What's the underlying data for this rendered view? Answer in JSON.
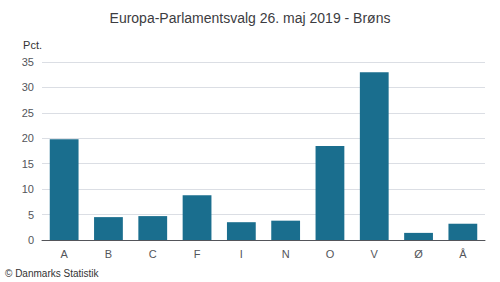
{
  "chart_data": {
    "type": "bar",
    "title": "Europa-Parlamentsvalg 26. maj 2019 - Brøns",
    "ylabel": "Pct.",
    "annotations": [
      "© Danmarks Statistik"
    ],
    "categories": [
      "A",
      "B",
      "C",
      "F",
      "I",
      "N",
      "O",
      "V",
      "Ø",
      "Å"
    ],
    "values": [
      19.8,
      4.5,
      4.7,
      8.8,
      3.5,
      3.8,
      18.5,
      33.0,
      1.4,
      3.2
    ],
    "color": "#1a6e8e",
    "ylim": [
      0,
      35
    ],
    "yticks": [
      0,
      5,
      10,
      15,
      20,
      25,
      30,
      35
    ],
    "grid": true
  }
}
